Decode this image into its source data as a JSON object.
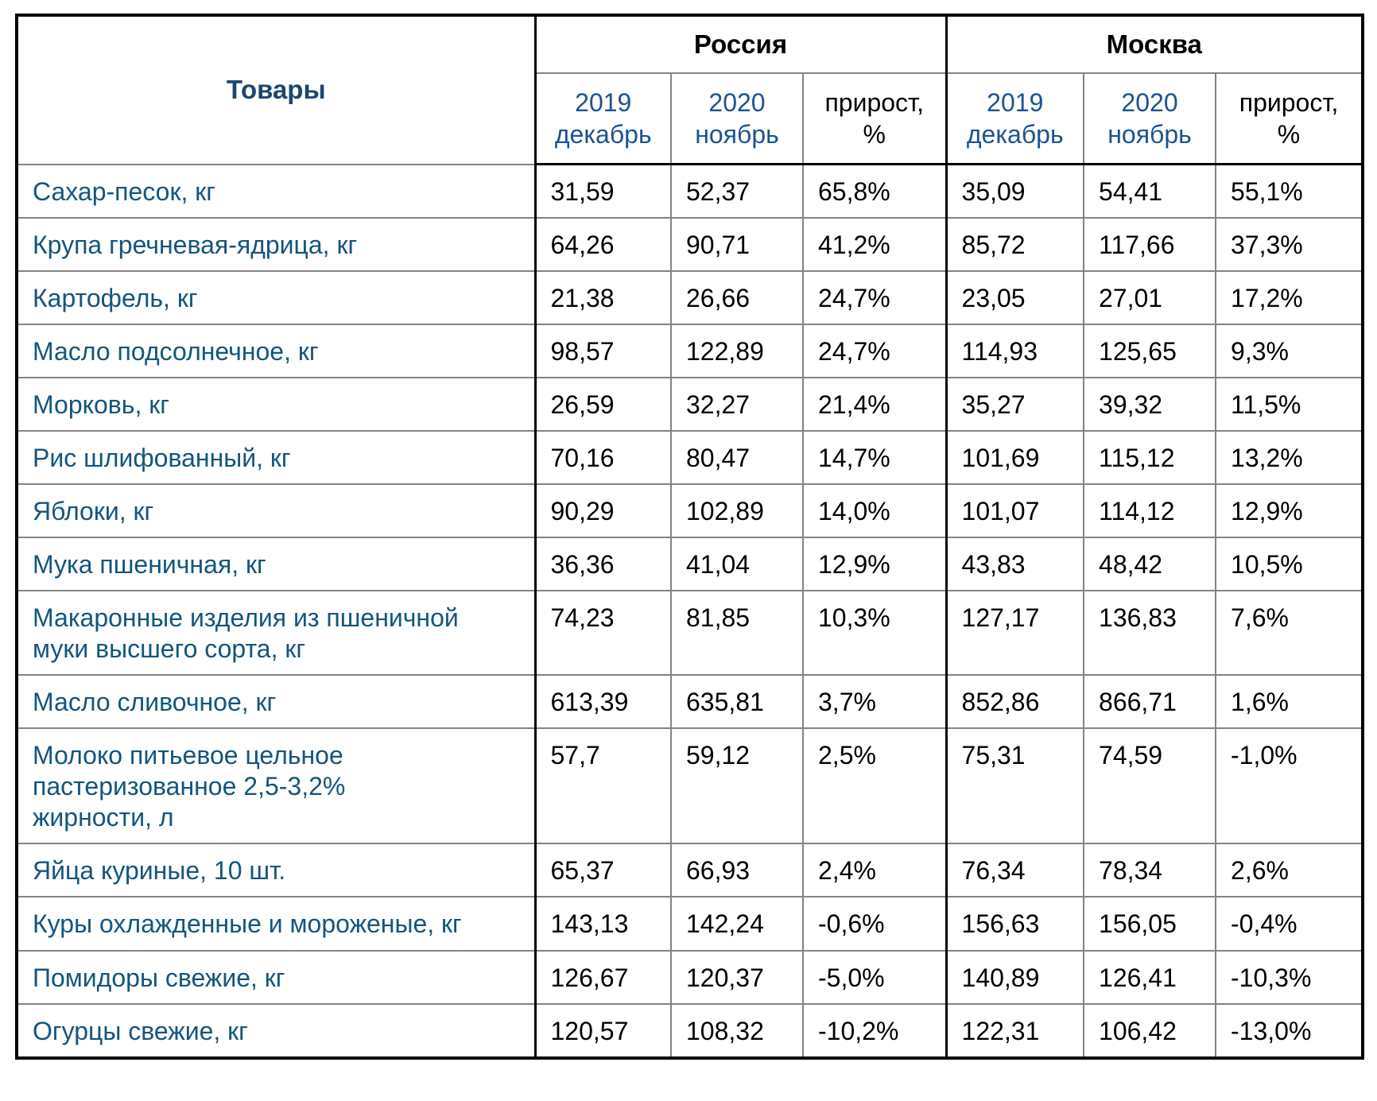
{
  "colors": {
    "title_navy": "#1C4670",
    "period_blue": "#1A5490",
    "product_blue": "#14557E",
    "value_black": "#000000",
    "thin_border": "#848484",
    "thick_border": "#000000",
    "background": "#FFFFFF"
  },
  "table": {
    "products_header": "Товары",
    "region_groups": [
      "Россия",
      "Москва"
    ],
    "period_headers": [
      "2019\nдекабрь",
      "2020\nноябрь",
      "прирост,\n%"
    ],
    "rows": [
      {
        "product": "Сахар-песок, кг",
        "russia": [
          "31,59",
          "52,37",
          "65,8%"
        ],
        "moscow": [
          "35,09",
          "54,41",
          "55,1%"
        ]
      },
      {
        "product": "Крупа гречневая-ядрица, кг",
        "russia": [
          "64,26",
          "90,71",
          "41,2%"
        ],
        "moscow": [
          "85,72",
          "117,66",
          "37,3%"
        ]
      },
      {
        "product": "Картофель, кг",
        "russia": [
          "21,38",
          "26,66",
          "24,7%"
        ],
        "moscow": [
          "23,05",
          "27,01",
          "17,2%"
        ]
      },
      {
        "product": "Масло подсолнечное, кг",
        "russia": [
          "98,57",
          "122,89",
          "24,7%"
        ],
        "moscow": [
          "114,93",
          "125,65",
          "9,3%"
        ]
      },
      {
        "product": "Морковь, кг",
        "russia": [
          "26,59",
          "32,27",
          "21,4%"
        ],
        "moscow": [
          "35,27",
          "39,32",
          "11,5%"
        ]
      },
      {
        "product": "Рис шлифованный, кг",
        "russia": [
          "70,16",
          "80,47",
          "14,7%"
        ],
        "moscow": [
          "101,69",
          "115,12",
          "13,2%"
        ]
      },
      {
        "product": "Яблоки, кг",
        "russia": [
          "90,29",
          "102,89",
          "14,0%"
        ],
        "moscow": [
          "101,07",
          "114,12",
          "12,9%"
        ]
      },
      {
        "product": "Мука пшеничная, кг",
        "russia": [
          "36,36",
          "41,04",
          "12,9%"
        ],
        "moscow": [
          "43,83",
          "48,42",
          "10,5%"
        ]
      },
      {
        "product": "Макаронные изделия из пшеничной\nмуки высшего сорта, кг",
        "russia": [
          "74,23",
          "81,85",
          "10,3%"
        ],
        "moscow": [
          "127,17",
          "136,83",
          "7,6%"
        ]
      },
      {
        "product": "Масло сливочное, кг",
        "russia": [
          "613,39",
          "635,81",
          "3,7%"
        ],
        "moscow": [
          "852,86",
          "866,71",
          "1,6%"
        ]
      },
      {
        "product": "Молоко питьевое цельное\nпастеризованное 2,5-3,2%\nжирности, л",
        "russia": [
          "57,7",
          "59,12",
          "2,5%"
        ],
        "moscow": [
          "75,31",
          "74,59",
          "-1,0%"
        ]
      },
      {
        "product": "Яйца куриные, 10 шт.",
        "russia": [
          "65,37",
          "66,93",
          "2,4%"
        ],
        "moscow": [
          "76,34",
          "78,34",
          "2,6%"
        ]
      },
      {
        "product": "Куры охлажденные и мороженые, кг",
        "russia": [
          "143,13",
          "142,24",
          "-0,6%"
        ],
        "moscow": [
          "156,63",
          "156,05",
          "-0,4%"
        ]
      },
      {
        "product": "Помидоры свежие, кг",
        "russia": [
          "126,67",
          "120,37",
          "-5,0%"
        ],
        "moscow": [
          "140,89",
          "126,41",
          "-10,3%"
        ]
      },
      {
        "product": "Огурцы свежие, кг",
        "russia": [
          "120,57",
          "108,32",
          "-10,2%"
        ],
        "moscow": [
          "122,31",
          "106,42",
          "-13,0%"
        ]
      }
    ]
  }
}
